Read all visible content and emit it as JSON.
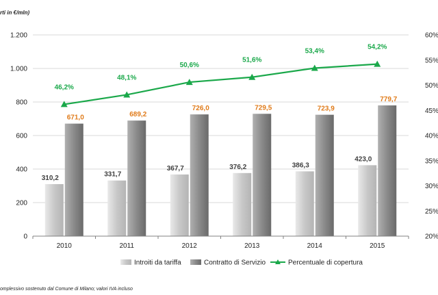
{
  "units_label": "rti in €/mln)",
  "footnote": "omplessivo sostenuto dal Comune di Milano; valori IVA incluso",
  "chart_data": {
    "type": "bar",
    "categories": [
      "2010",
      "2011",
      "2012",
      "2013",
      "2014",
      "2015"
    ],
    "series": [
      {
        "name": "Introiti da tariffa",
        "kind": "bar",
        "axis": "left",
        "values": [
          310.2,
          331.7,
          367.7,
          376.2,
          386.3,
          423.0
        ],
        "labels": [
          "310,2",
          "331,7",
          "367,7",
          "376,2",
          "386,3",
          "423,0"
        ],
        "label_color": "#404040"
      },
      {
        "name": "Contratto di Servizio",
        "kind": "bar",
        "axis": "left",
        "values": [
          671.0,
          689.2,
          726.0,
          729.5,
          723.9,
          779.7
        ],
        "labels": [
          "671,0",
          "689,2",
          "726,0",
          "729,5",
          "723,9",
          "779,7"
        ],
        "label_color": "#e07b1a"
      },
      {
        "name": "Percentuale di copertura",
        "kind": "line",
        "axis": "right",
        "values": [
          46.2,
          48.1,
          50.6,
          51.6,
          53.4,
          54.2
        ],
        "labels": [
          "46,2%",
          "48,1%",
          "50,6%",
          "51,6%",
          "53,4%",
          "54,2%"
        ],
        "label_color": "#1aa84a",
        "marker": "triangle"
      }
    ],
    "y_left": {
      "ylim": [
        0,
        1200
      ],
      "ticks": [
        0,
        200,
        400,
        600,
        800,
        1000,
        1200
      ],
      "tick_labels": [
        "0",
        "200",
        "400",
        "600",
        "800",
        "1.000",
        "1.200"
      ]
    },
    "y_right": {
      "ylim": [
        20,
        60
      ],
      "ticks": [
        20,
        25,
        30,
        35,
        40,
        45,
        50,
        55,
        60
      ],
      "tick_labels": [
        "20%",
        "25%",
        "30%",
        "35%",
        "40%",
        "45%",
        "50%",
        "55%",
        "60%"
      ]
    },
    "grid": true,
    "legend": "bottom",
    "colors": {
      "bar1": "#c8c8c8",
      "bar2": "#8a8a8a",
      "line": "#1aa84a",
      "grid": "#d9d9d9"
    }
  }
}
